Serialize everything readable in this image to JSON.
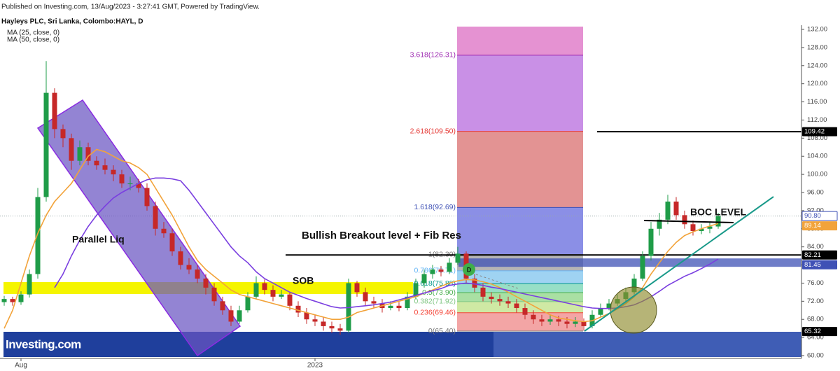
{
  "header": {
    "published": "Published on Investing.com, 13/Aug/2023 - 3:27:41 GMT, Powered by TradingView.",
    "logo": "Investing.com"
  },
  "chart_data": {
    "type": "candlestick",
    "title": "Hayleys PLC, Sri Lanka, Colombo:HAYL, D",
    "categories": [
      null,
      null,
      "Aug",
      null,
      null,
      null,
      null,
      null,
      null,
      null,
      null,
      null,
      null,
      null,
      null,
      null,
      null,
      null,
      null,
      null,
      null,
      null,
      null,
      null,
      null,
      null,
      null,
      null,
      null,
      null,
      null,
      null,
      null,
      null,
      null,
      null,
      null,
      "2023",
      null,
      null,
      null,
      null,
      null,
      null,
      null,
      null,
      null,
      null,
      null,
      null,
      null,
      null,
      null,
      null,
      null,
      null,
      null,
      null,
      null,
      null,
      null,
      null,
      null,
      null,
      null,
      null,
      null,
      null,
      null,
      null,
      null,
      null,
      null,
      null,
      null,
      null,
      null,
      null,
      null,
      null,
      null,
      null,
      null,
      null,
      null,
      null
    ],
    "ohlc": {
      "open": [
        71.8,
        72.5,
        71.8,
        73.5,
        78,
        95,
        118,
        110,
        108,
        103,
        106,
        103,
        102,
        101,
        100,
        98,
        98,
        97,
        93,
        88,
        87,
        83,
        80,
        79,
        77,
        75,
        72,
        70,
        67.5,
        70,
        73,
        76,
        74.5,
        73,
        73.5,
        71,
        69.5,
        68,
        67.5,
        66.5,
        66,
        65.5,
        76,
        74,
        72,
        71.5,
        70.5,
        71,
        70.5,
        73,
        76,
        78,
        79,
        78.5,
        80.5,
        82.5,
        77,
        75,
        73,
        72.5,
        72,
        71.5,
        70.5,
        69,
        68,
        67.5,
        68,
        67.5,
        67,
        67.5,
        66.5,
        69,
        70.5,
        71.5,
        72.5,
        74,
        77,
        82,
        88,
        90,
        94,
        91,
        89,
        87.5,
        88,
        88.5
      ],
      "high": [
        73.2,
        73,
        74.2,
        79,
        97,
        125,
        119,
        111,
        109,
        107.5,
        107,
        104,
        103.5,
        102,
        101,
        99.5,
        99,
        98,
        94,
        89.5,
        88,
        84,
        81.5,
        80,
        78,
        76,
        73,
        71,
        71,
        74,
        77.5,
        76.8,
        75.5,
        74.5,
        74,
        72,
        70.5,
        69,
        68.5,
        67.5,
        67,
        77,
        76.5,
        75,
        73,
        72.5,
        72,
        71.8,
        74,
        77,
        79,
        80,
        79.8,
        81.5,
        84,
        83,
        78,
        76,
        74,
        73.5,
        73,
        72.5,
        71.5,
        70,
        69,
        69,
        68.8,
        68.5,
        68.5,
        68.2,
        70,
        71.5,
        72.5,
        73.5,
        75,
        78,
        83,
        89.5,
        91.5,
        95.5,
        95,
        92,
        89.8,
        89,
        89.5,
        91.5
      ],
      "low": [
        71,
        71,
        71.2,
        72.8,
        77,
        94,
        108,
        106,
        101,
        102,
        102,
        101,
        100,
        98.5,
        97,
        96.5,
        96,
        92,
        86.5,
        86,
        82,
        79,
        78,
        76,
        73.5,
        71,
        69,
        66.5,
        67,
        69.5,
        72.5,
        73.5,
        72,
        72.5,
        70,
        68.5,
        67,
        66.5,
        65.5,
        65,
        64.6,
        65,
        73,
        71,
        70.5,
        69.5,
        70,
        69.8,
        70,
        72.5,
        75,
        77,
        77.5,
        78,
        80,
        76,
        74,
        72,
        71.5,
        71,
        70.5,
        69.5,
        68,
        67,
        66.5,
        66.8,
        66.5,
        66,
        66.3,
        65.5,
        66,
        68.5,
        70,
        71,
        72,
        73.5,
        76.5,
        81,
        86.5,
        89,
        90,
        88,
        86.5,
        86.8,
        87,
        88
      ],
      "close": [
        72.5,
        71.8,
        73.5,
        78,
        95,
        118,
        110,
        108,
        103,
        106,
        103,
        102,
        101,
        100,
        98,
        98,
        97,
        93,
        88,
        87,
        83,
        80,
        79,
        77,
        75,
        72,
        70,
        67.5,
        70,
        73,
        76,
        74.5,
        73,
        73.5,
        71,
        69.5,
        68,
        67.5,
        66.5,
        66,
        65.5,
        76,
        74,
        72,
        71.5,
        70.5,
        71,
        70.5,
        73,
        76,
        78,
        79,
        78.5,
        80.5,
        82.5,
        77,
        75,
        73,
        72.5,
        72,
        71.5,
        70.5,
        69,
        68,
        67.5,
        68,
        67.5,
        67,
        67.5,
        66.5,
        69,
        70.5,
        71.5,
        72.5,
        74,
        77,
        82,
        88,
        90,
        94,
        91,
        89,
        87.5,
        88,
        88.5,
        90.8
      ]
    },
    "up_color": "#1f9c48",
    "down_color": "#c62828",
    "indicators": [
      {
        "name": "MA (25, close, 0)",
        "color": "#f2a33a",
        "values": [
          66,
          70,
          76,
          82,
          87,
          91,
          94,
          96,
          98,
          101,
          104,
          105.5,
          105,
          104,
          103,
          102.5,
          101.5,
          100,
          97,
          94,
          91,
          87.5,
          84,
          81,
          79,
          77.5,
          76,
          74.5,
          73.5,
          73,
          72.5,
          72,
          71.5,
          71,
          70.5,
          70,
          69.5,
          69,
          68.5,
          68,
          68,
          68.5,
          69.5,
          70,
          70.5,
          71,
          71.5,
          72,
          72.5,
          73,
          73.8,
          74.5,
          75.3,
          76,
          76.5,
          76.8,
          76.7,
          76.3,
          75.8,
          75,
          74,
          73,
          72,
          71,
          70,
          69,
          68.3,
          68,
          67.7,
          67.5,
          67.7,
          68.5,
          69.3,
          70.3,
          71.5,
          73,
          75,
          78,
          80.5,
          83,
          85,
          86.5,
          87.3,
          88,
          88.6,
          89.14
        ]
      },
      {
        "name": "MA (50, close, 0)",
        "color": "#7a3fe0",
        "values": [
          null,
          null,
          null,
          null,
          null,
          null,
          75,
          78,
          82,
          85.5,
          88.5,
          91,
          93,
          94.8,
          96,
          97,
          98,
          98.8,
          99.2,
          99.2,
          99,
          98.6,
          96.5,
          94,
          91.5,
          89,
          86.5,
          84,
          82,
          80.5,
          78.5,
          77,
          76,
          75,
          74,
          73.3,
          72.6,
          72,
          71.4,
          70.8,
          70.5,
          70.6,
          70.8,
          71,
          71.2,
          71.5,
          71.8,
          72.3,
          72.8,
          73.3,
          73.8,
          74.3,
          74.8,
          75.5,
          75.8,
          76,
          75.8,
          75.5,
          75.1,
          74.8,
          74.4,
          74,
          73.6,
          73.2,
          72.8,
          72.4,
          72,
          71.6,
          71.2,
          70.8,
          70.5,
          70.4,
          70.4,
          70.5,
          70.8,
          71.2,
          72,
          73,
          74.2,
          75.5,
          76.5,
          77.5,
          78.3,
          79.2,
          80.2,
          81.3
        ]
      }
    ],
    "ylim": [
      60,
      132
    ],
    "yticks": [
      {
        "value": 132,
        "label": "132.00"
      },
      {
        "value": 128,
        "label": "128.00"
      },
      {
        "value": 124,
        "label": "124.00"
      },
      {
        "value": 120,
        "label": "120.00"
      },
      {
        "value": 116,
        "label": "116.00"
      },
      {
        "value": 112,
        "label": "112.00"
      },
      {
        "value": 108,
        "label": "108.00"
      },
      {
        "value": 104,
        "label": "104.00"
      },
      {
        "value": 100,
        "label": "100.00"
      },
      {
        "value": 96,
        "label": "96.00"
      },
      {
        "value": 92,
        "label": "92.00"
      },
      {
        "value": 88,
        "label": "88.00"
      },
      {
        "value": 84,
        "label": "84.00"
      },
      {
        "value": 80,
        "label": "80.00"
      },
      {
        "value": 76,
        "label": "76.00"
      },
      {
        "value": 72,
        "label": "72.00"
      },
      {
        "value": 68,
        "label": "68.00"
      },
      {
        "value": 64,
        "label": "64.00"
      },
      {
        "value": 60,
        "label": "60.00"
      }
    ],
    "grid": false,
    "price_tags": [
      {
        "value": 109.42,
        "bg": "#000000",
        "text_color": "#ffffff"
      },
      {
        "value": {
          "value": 90.8,
          "label": "90.80"
        },
        "bg": "#ffffff",
        "text_color": "#3f51b5"
      },
      {
        "value": 89.14,
        "bg": "#f2a33a",
        "text_color": "#ffffff"
      },
      {
        "value": 82.21,
        "bg": "#000000",
        "text_color": "#ffffff"
      },
      {
        "value": 81.45,
        "bg": "#3f51b5",
        "text_color": "#ffffff"
      },
      {
        "value": 65.32,
        "bg": "#000000",
        "text_color": "#ffffff"
      }
    ],
    "fib_top_color": "#e592d2",
    "fib_levels": [
      {
        "value": 126.31,
        "label": "3.618(126.31)",
        "color": "#9c27b0",
        "fill": "#c990e6"
      },
      {
        "value": 109.5,
        "label": "2.618(109.50)",
        "color": "#e53935",
        "fill": "#e39393"
      },
      {
        "value": 92.69,
        "label": "1.618(92.69)",
        "color": "#3f51b5",
        "fill": "#8b8fe6"
      },
      {
        "value": 82.3,
        "label": "1(82.30)",
        "color": "#777777",
        "fill": "#b5b5b5"
      },
      {
        "value": 78.71,
        "label": "0.786(78.71)",
        "color": "#64b5f6",
        "fill": "#9fd3f2"
      },
      {
        "value": 75.88,
        "label": "0.618(75.88)",
        "color": "#009688",
        "fill": "#97dfc6"
      },
      {
        "value": 73.9,
        "label": "0.5(73.90)",
        "color": "#4caf50",
        "fill": "#a9e0a3"
      },
      {
        "value": 71.92,
        "label": "0.382(71.92)",
        "color": "#81c784",
        "fill": "#cfe9a4"
      },
      {
        "value": 69.46,
        "label": "0.236(69.46)",
        "color": "#f44336",
        "fill": "#f3a5a5"
      },
      {
        "value": 65.4,
        "label": "0(65.40)",
        "color": "#777777"
      }
    ],
    "annotations": [
      "Parallel Liq",
      "SOB",
      "Bullish Breakout level + Fib Res",
      "BOC LEVEL",
      "D"
    ]
  }
}
